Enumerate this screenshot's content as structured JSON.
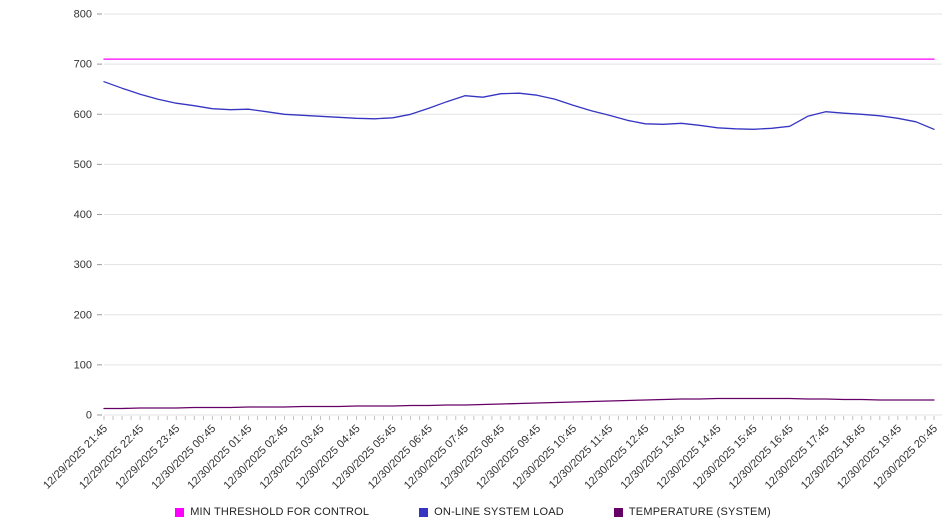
{
  "chart_data": {
    "type": "line",
    "title": "",
    "xlabel": "",
    "ylabel": "",
    "ylim": [
      0,
      800
    ],
    "y_ticks": [
      0,
      100,
      200,
      300,
      400,
      500,
      600,
      700,
      800
    ],
    "grid": true,
    "legend_position": "bottom",
    "x_labels": [
      "12/29/2025 21:45",
      "12/29/2025 22:45",
      "12/29/2025 23:45",
      "12/30/2025 00:45",
      "12/30/2025 01:45",
      "12/30/2025 02:45",
      "12/30/2025 03:45",
      "12/30/2025 04:45",
      "12/30/2025 05:45",
      "12/30/2025 06:45",
      "12/30/2025 07:45",
      "12/30/2025 08:45",
      "12/30/2025 09:45",
      "12/30/2025 10:45",
      "12/30/2025 11:45",
      "12/30/2025 12:45",
      "12/30/2025 13:45",
      "12/30/2025 14:45",
      "12/30/2025 15:45",
      "12/30/2025 16:45",
      "12/30/2025 17:45",
      "12/30/2025 18:45",
      "12/30/2025 19:45",
      "12/30/2025 20:45"
    ],
    "series": [
      {
        "name": "MIN THRESHOLD FOR CONTROL",
        "color": "#ff00ff",
        "constant": 710
      },
      {
        "name": "ON-LINE SYSTEM LOAD",
        "color": "#3535c2",
        "values": [
          665,
          652,
          640,
          630,
          622,
          617,
          611,
          609,
          610,
          605,
          600,
          598,
          596,
          594,
          592,
          591,
          593,
          600,
          612,
          625,
          637,
          634,
          641,
          642,
          638,
          630,
          618,
          607,
          598,
          588,
          581,
          580,
          582,
          578,
          573,
          571,
          570,
          572,
          576,
          596,
          605,
          602,
          600,
          597,
          592,
          585,
          570
        ]
      },
      {
        "name": "TEMPERATURE (SYSTEM)",
        "color": "#660066",
        "values": [
          13,
          13,
          14,
          14,
          14,
          15,
          15,
          15,
          16,
          16,
          16,
          17,
          17,
          17,
          18,
          18,
          18,
          19,
          19,
          20,
          20,
          21,
          22,
          23,
          24,
          25,
          26,
          27,
          28,
          29,
          30,
          31,
          32,
          32,
          33,
          33,
          33,
          33,
          33,
          32,
          32,
          31,
          31,
          30,
          30,
          30,
          30
        ]
      }
    ],
    "axis": {
      "grid_color": "#e3e3e3",
      "tick_color": "#999999",
      "label_color": "#333333"
    }
  }
}
